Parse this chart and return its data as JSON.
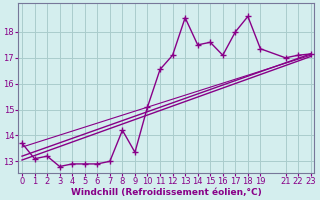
{
  "xlabel": "Windchill (Refroidissement éolien,°C)",
  "bg_color": "#d4eeee",
  "grid_color": "#aacccc",
  "line_color": "#880088",
  "x_data": [
    0,
    1,
    2,
    3,
    4,
    5,
    6,
    7,
    8,
    9,
    10,
    11,
    12,
    13,
    14,
    15,
    16,
    17,
    18,
    19,
    21,
    22,
    23
  ],
  "y_main": [
    13.7,
    13.1,
    13.2,
    12.8,
    12.9,
    12.9,
    12.9,
    13.0,
    14.2,
    13.35,
    15.1,
    16.55,
    17.1,
    18.55,
    17.5,
    17.6,
    17.1,
    18.0,
    18.6,
    17.35,
    17.0,
    17.1,
    17.15
  ],
  "x_line1_start": 0,
  "x_line1_end": 23,
  "y_line1_start": 13.05,
  "y_line1_end": 17.05,
  "x_line2_start": 0,
  "x_line2_end": 23,
  "y_line2_start": 13.2,
  "y_line2_end": 17.15,
  "x_line3_start": 0,
  "x_line3_end": 23,
  "y_line3_start": 13.55,
  "y_line3_end": 17.1,
  "xlim": [
    -0.3,
    23.3
  ],
  "ylim": [
    12.55,
    19.1
  ],
  "yticks": [
    13,
    14,
    15,
    16,
    17,
    18
  ],
  "xticks": [
    0,
    1,
    2,
    3,
    4,
    5,
    6,
    7,
    8,
    9,
    10,
    11,
    12,
    13,
    14,
    15,
    16,
    17,
    18,
    19,
    21,
    22,
    23
  ],
  "xlabel_fontsize": 6.5,
  "tick_fontsize": 6.0,
  "linewidth": 1.0,
  "markersize": 2.5
}
